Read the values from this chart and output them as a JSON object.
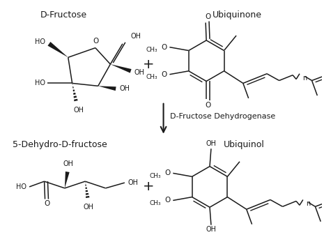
{
  "bg_color": "#ffffff",
  "line_color": "#1a1a1a",
  "labels": {
    "d_fructose": "D-Fructose",
    "ubiquinone": "Ubiquinone",
    "enzyme": "D-Fructose Dehydrogenase",
    "product1": "5-Dehydro-D-fructose",
    "ubiquinol": "Ubiquinol"
  },
  "font_size_label": 9,
  "font_size_atom": 7,
  "font_size_enzyme": 8
}
